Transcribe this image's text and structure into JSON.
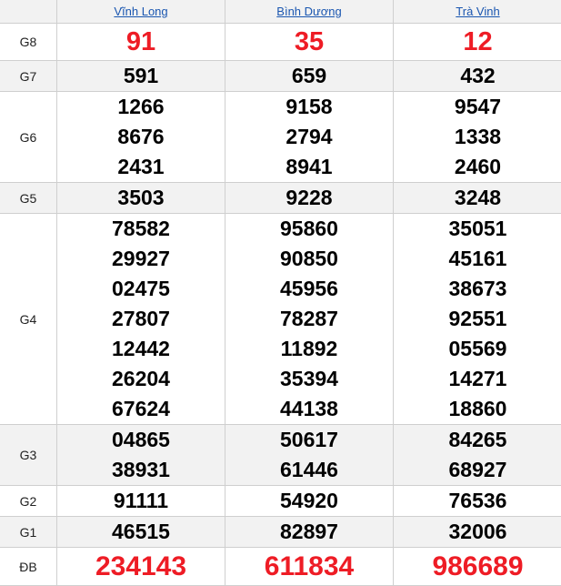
{
  "colors": {
    "accent_red": "#ee1c25",
    "link_blue": "#1a56b0"
  },
  "provinces": [
    "Vĩnh Long",
    "Bình Dương",
    "Trà Vinh"
  ],
  "prizes": [
    {
      "label": "G8",
      "results": [
        [
          "91"
        ],
        [
          "35"
        ],
        [
          "12"
        ]
      ]
    },
    {
      "label": "G7",
      "results": [
        [
          "591"
        ],
        [
          "659"
        ],
        [
          "432"
        ]
      ]
    },
    {
      "label": "G6",
      "results": [
        [
          "1266",
          "8676",
          "2431"
        ],
        [
          "9158",
          "2794",
          "8941"
        ],
        [
          "9547",
          "1338",
          "2460"
        ]
      ]
    },
    {
      "label": "G5",
      "results": [
        [
          "3503"
        ],
        [
          "9228"
        ],
        [
          "3248"
        ]
      ]
    },
    {
      "label": "G4",
      "results": [
        [
          "78582",
          "29927",
          "02475",
          "27807",
          "12442",
          "26204",
          "67624"
        ],
        [
          "95860",
          "90850",
          "45956",
          "78287",
          "11892",
          "35394",
          "44138"
        ],
        [
          "35051",
          "45161",
          "38673",
          "92551",
          "05569",
          "14271",
          "18860"
        ]
      ]
    },
    {
      "label": "G3",
      "results": [
        [
          "04865",
          "38931"
        ],
        [
          "50617",
          "61446"
        ],
        [
          "84265",
          "68927"
        ]
      ]
    },
    {
      "label": "G2",
      "results": [
        [
          "91111"
        ],
        [
          "54920"
        ],
        [
          "76536"
        ]
      ]
    },
    {
      "label": "G1",
      "results": [
        [
          "46515"
        ],
        [
          "82897"
        ],
        [
          "32006"
        ]
      ]
    },
    {
      "label": "ĐB",
      "results": [
        [
          "234143"
        ],
        [
          "611834"
        ],
        [
          "986689"
        ]
      ]
    }
  ]
}
